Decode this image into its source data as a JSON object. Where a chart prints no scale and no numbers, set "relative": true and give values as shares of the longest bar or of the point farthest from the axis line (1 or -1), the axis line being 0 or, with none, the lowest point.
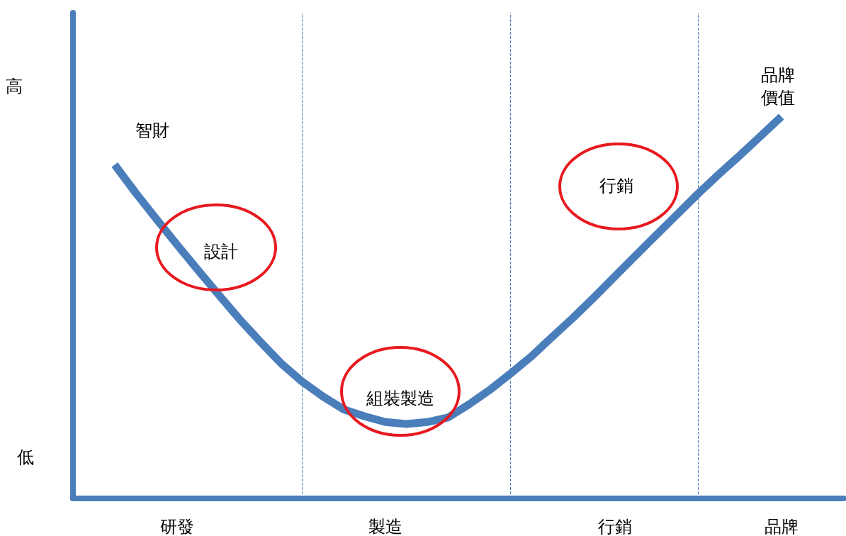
{
  "chart_data": {
    "type": "line",
    "relative": true,
    "color": "#4a7ebb",
    "categories": [
      null,
      null,
      null,
      null,
      null,
      "研發",
      null,
      null,
      null,
      null,
      null,
      null,
      null,
      null,
      null,
      "製造",
      null,
      null,
      null,
      null,
      null,
      null,
      null,
      null,
      null,
      null,
      "行銷",
      null,
      null,
      null,
      null,
      null,
      null,
      null,
      "品牌",
      null,
      null,
      null
    ],
    "values": [
      null,
      null,
      0.874,
      0.801,
      0.732,
      0.664,
      0.598,
      0.533,
      0.469,
      0.41,
      0.353,
      0.306,
      0.267,
      0.233,
      0.215,
      0.2,
      0.195,
      0.2,
      0.212,
      0.246,
      0.284,
      0.327,
      0.372,
      0.423,
      0.473,
      0.526,
      0.581,
      0.636,
      0.69,
      0.744,
      0.798,
      0.849,
      0.898,
      0.949,
      1.0,
      null,
      null,
      null
    ],
    "annotations": [
      "高",
      "低",
      "智財",
      "設計",
      "組裝製造",
      "行銷",
      "品牌價值"
    ],
    "marker": "none",
    "line_style": "solid",
    "grid": "x"
  }
}
